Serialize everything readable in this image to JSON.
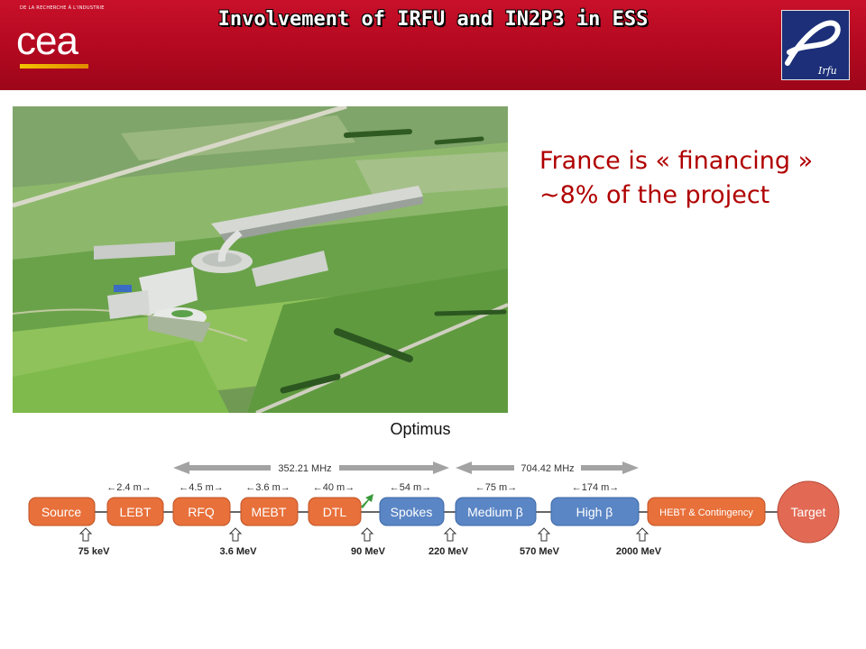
{
  "header": {
    "title": "Involvement of IRFU and IN2P3 in ESS",
    "cea_small": "DE LA RECHERCHE À L'INDUSTRIE",
    "cea_logo": "cea",
    "irfu_label": "Irfu"
  },
  "statement": {
    "line1": "France is « financing »",
    "line2": "~8% of the project"
  },
  "diagram": {
    "title": "Optimus",
    "frequencies": [
      "352.21 MHz",
      "704.42 MHz"
    ],
    "boxes": [
      "Source",
      "LEBT",
      "RFQ",
      "MEBT",
      "DTL",
      "Spokes",
      "Medium β",
      "High β",
      "HEBT & Contingency",
      "Target"
    ],
    "lengths": [
      "2.4 m",
      "4.5 m",
      "3.6 m",
      "40 m",
      "54 m",
      "75 m",
      "174 m"
    ],
    "energies": [
      "75 keV",
      "3.6 MeV",
      "90 MeV",
      "220 MeV",
      "570 MeV",
      "2000 MeV"
    ],
    "colors": {
      "orange": "#e8703a",
      "blue": "#5b86c5",
      "target": "#e26a55",
      "arrow_gray": "#999999",
      "green": "#3a9a3a"
    }
  },
  "colors": {
    "header_red": "#c0102a",
    "statement_red": "#b00000"
  }
}
